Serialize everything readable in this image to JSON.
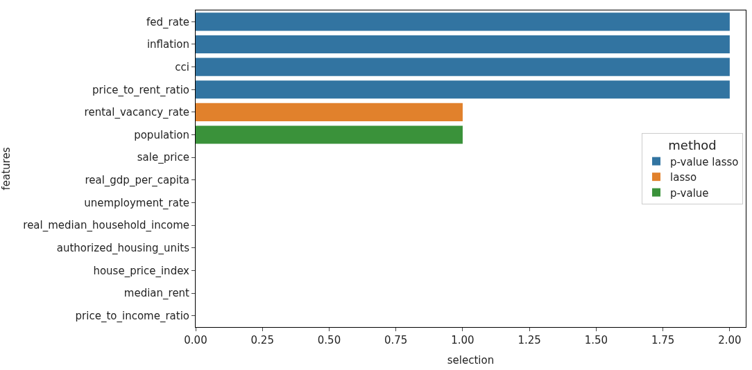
{
  "chart_data": {
    "type": "bar",
    "orientation": "horizontal",
    "xlabel": "selection",
    "ylabel": "features",
    "legend_title": "method",
    "legend": "right",
    "categories": [
      "fed_rate",
      "inflation",
      "cci",
      "price_to_rent_ratio",
      "rental_vacancy_rate",
      "population",
      "sale_price",
      "real_gdp_per_capita",
      "unemployment_rate",
      "real_median_household_income",
      "authorized_housing_units",
      "house_price_index",
      "median_rent",
      "price_to_income_ratio"
    ],
    "series": [
      {
        "name": "p-value lasso",
        "color": "#3274a1",
        "values": [
          2,
          2,
          2,
          2,
          null,
          null,
          null,
          null,
          null,
          null,
          null,
          null,
          null,
          null
        ]
      },
      {
        "name": "lasso",
        "color": "#e1812c",
        "values": [
          null,
          null,
          null,
          null,
          1,
          null,
          null,
          null,
          null,
          null,
          null,
          null,
          null,
          null
        ]
      },
      {
        "name": "p-value",
        "color": "#3a923a",
        "values": [
          null,
          null,
          null,
          null,
          null,
          1,
          null,
          null,
          null,
          null,
          null,
          null,
          null,
          null
        ]
      }
    ],
    "xlim": [
      0,
      2.06
    ],
    "xticks": [
      {
        "value": 0,
        "label": "0.00"
      },
      {
        "value": 0.25,
        "label": "0.25"
      },
      {
        "value": 0.5,
        "label": "0.50"
      },
      {
        "value": 0.75,
        "label": "0.75"
      },
      {
        "value": 1,
        "label": "1.00"
      },
      {
        "value": 1.25,
        "label": "1.25"
      },
      {
        "value": 1.5,
        "label": "1.50"
      },
      {
        "value": 1.75,
        "label": "1.75"
      },
      {
        "value": 2,
        "label": "2.00"
      }
    ]
  }
}
